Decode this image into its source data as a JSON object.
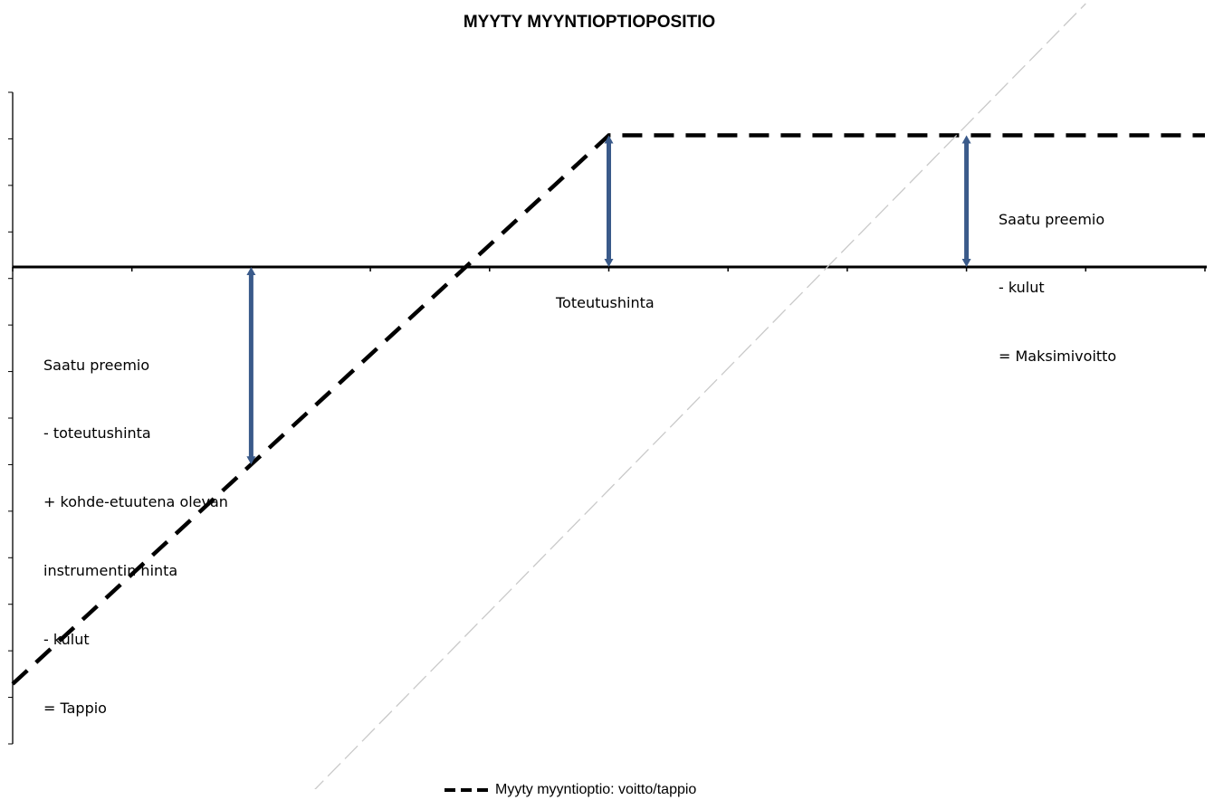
{
  "chart_data": {
    "type": "line",
    "title": "MYYTY MYYNTIOPTIOPOSITIO",
    "xlabel": "",
    "ylabel": "",
    "x_tick_count": 10,
    "y_tick_count": 14,
    "strike_label": "Toteutushinta",
    "series": [
      {
        "name": "Myyty myyntioptio: voitto/tappio",
        "style": "dashed",
        "color": "#000000",
        "x": [
          0,
          5,
          10
        ],
        "y": [
          -9.5,
          3,
          3
        ]
      },
      {
        "style": "thin-dash",
        "color": "#c9c9c9",
        "x": [
          2.5,
          9
        ],
        "y": [
          -12,
          6
        ]
      }
    ],
    "annotations": [
      {
        "lines": [
          "Saatu preemio",
          "- kulut",
          "= Maksimivoitto"
        ],
        "arrow_x": 8,
        "arrow_from": 0,
        "arrow_to": 3
      },
      {
        "lines": [
          "Saatu preemio",
          "- toteutushinta",
          "+ kohde-etuutena olevan",
          "instrumentin hinta",
          "- kulut",
          "= Tappio"
        ],
        "arrow_x": 2,
        "arrow_from": 0,
        "arrow_to": -4.5
      },
      {
        "arrow_x": 5,
        "arrow_from": 0,
        "arrow_to": 3
      }
    ],
    "arrow_color": "#3a5a8a",
    "legend": "bottom",
    "grid": false
  }
}
